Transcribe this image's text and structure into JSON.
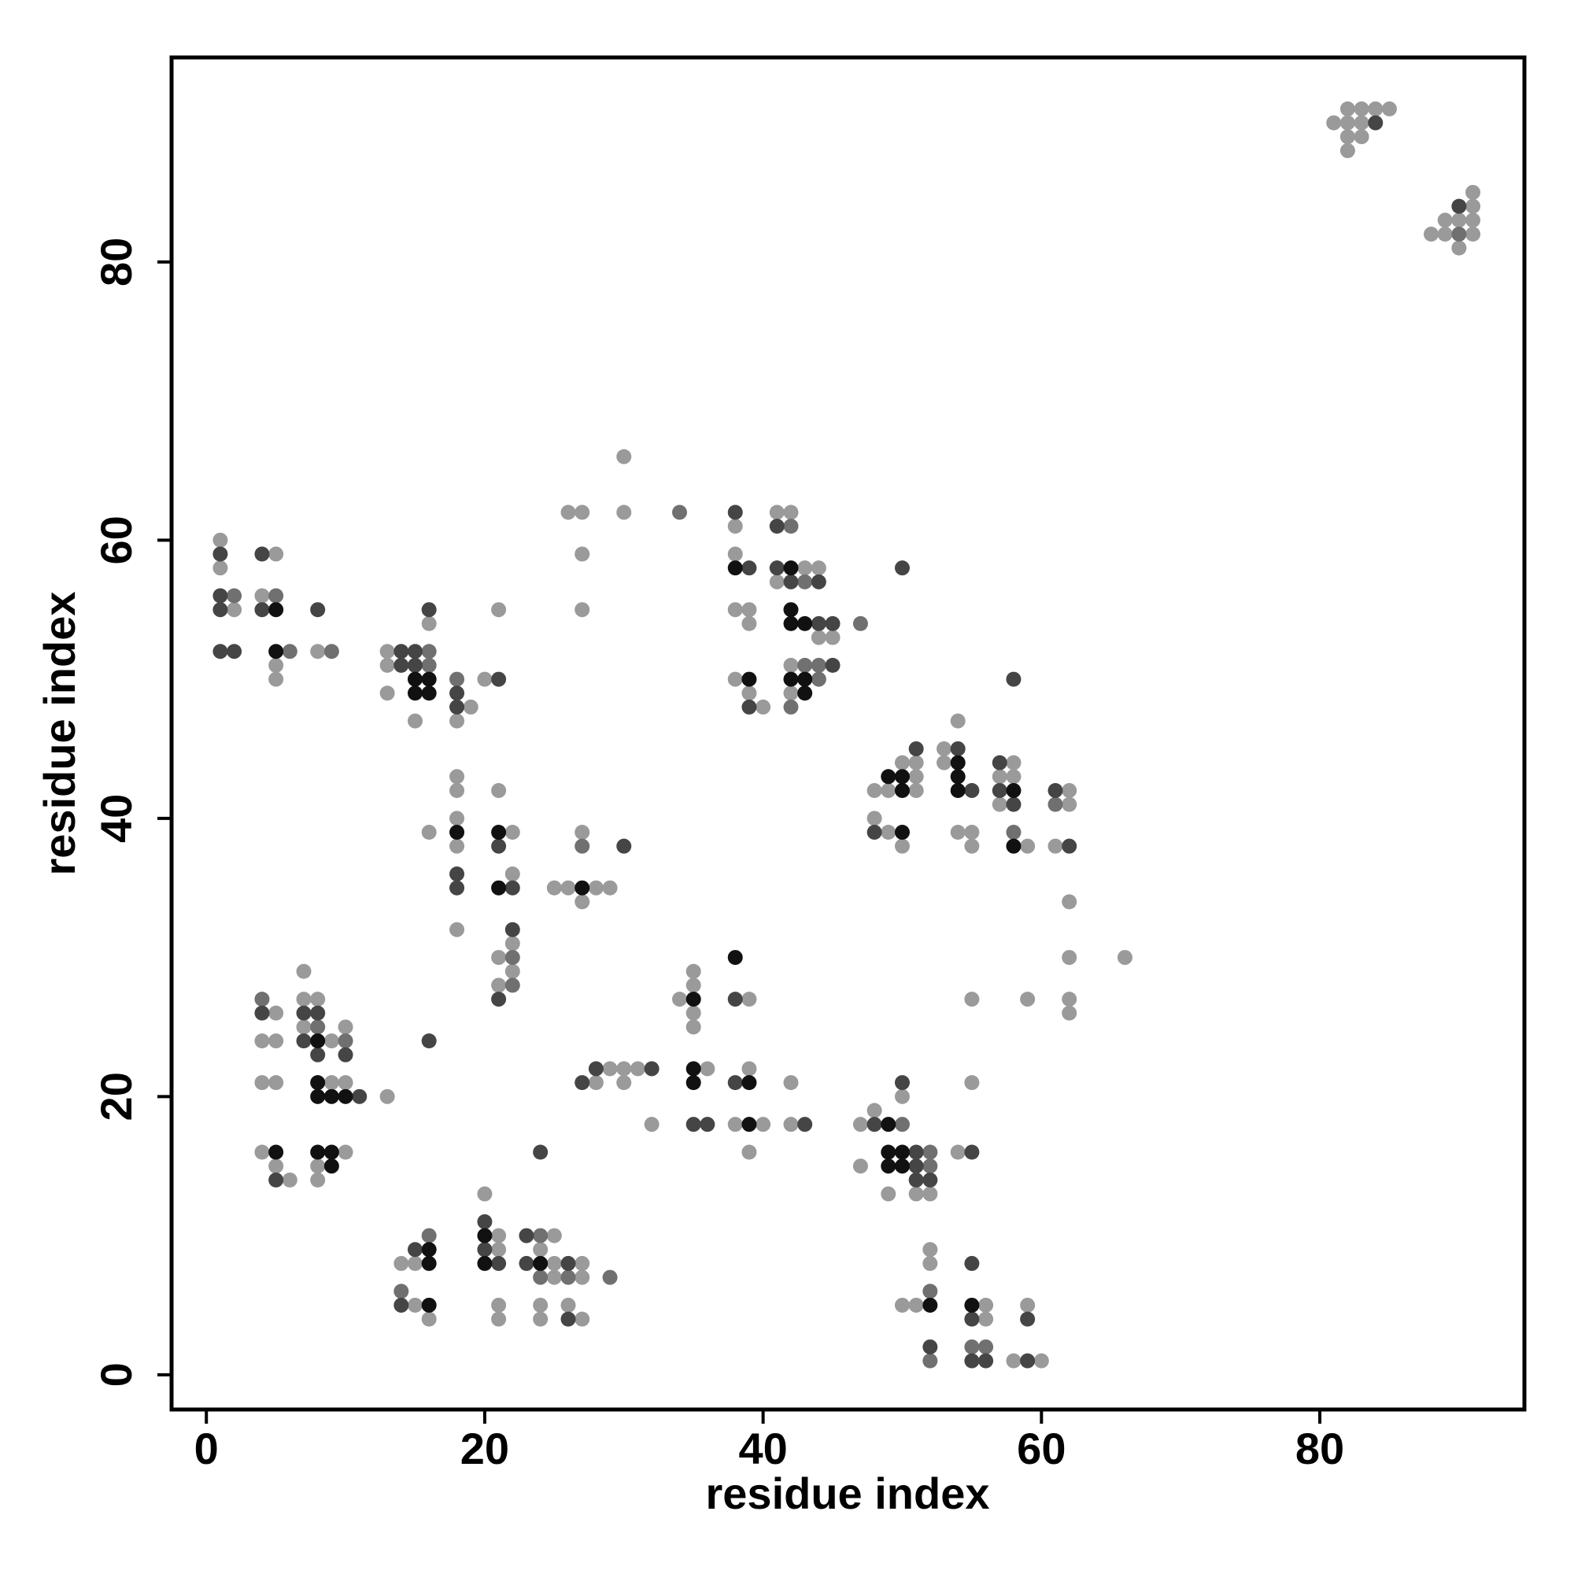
{
  "chart_data": {
    "type": "scatter",
    "xlabel": "residue index",
    "ylabel": "residue index",
    "xlim": [
      -2.5,
      94.7
    ],
    "ylim": [
      -2.5,
      94.7
    ],
    "xticks": [
      0,
      20,
      40,
      60,
      80
    ],
    "yticks": [
      0,
      20,
      40,
      60,
      80
    ],
    "grid": false,
    "series": [
      {
        "color": "#9a9a9a",
        "x": [
          82,
          83,
          84,
          85,
          81,
          82,
          83,
          82,
          83,
          82,
          91,
          91,
          89,
          90,
          91,
          88,
          89,
          91,
          90,
          1,
          1,
          5,
          4,
          2,
          8,
          5,
          5,
          13,
          13,
          13,
          15,
          16,
          19,
          18,
          20,
          18,
          18,
          18,
          16,
          18,
          18,
          21,
          22,
          22,
          22,
          21,
          22,
          21,
          27,
          25,
          26,
          28,
          29,
          27,
          21,
          26,
          27,
          27,
          27,
          30,
          30,
          38,
          41,
          42,
          38,
          43,
          44,
          41,
          38,
          39,
          39,
          44,
          45,
          42,
          38,
          39,
          42,
          40,
          54,
          53,
          50,
          51,
          53,
          58,
          51,
          57,
          58,
          48,
          49,
          51,
          62,
          57,
          62,
          48,
          49,
          54,
          55,
          50,
          55,
          59,
          61,
          62,
          62,
          66,
          62,
          62,
          55,
          59,
          7,
          7,
          8,
          5,
          7,
          10,
          4,
          5,
          9,
          4,
          5,
          9,
          10,
          13,
          4,
          10,
          5,
          8,
          6,
          8,
          35,
          34,
          35,
          35,
          35,
          39,
          29,
          30,
          31,
          28,
          30,
          36,
          39,
          42,
          32,
          38,
          40,
          42,
          39,
          48,
          47,
          50,
          54,
          47,
          49,
          51,
          52,
          55,
          14,
          15,
          15,
          16,
          20,
          21,
          21,
          21,
          21,
          25,
          24,
          25,
          27,
          25,
          27,
          24,
          24,
          26,
          27,
          52,
          52,
          50,
          51,
          56,
          56,
          59,
          58,
          60
        ],
        "y": [
          91,
          91,
          91,
          91,
          90,
          90,
          90,
          89,
          89,
          88,
          85,
          84,
          83,
          83,
          83,
          82,
          82,
          82,
          81,
          60,
          58,
          59,
          56,
          55,
          52,
          51,
          50,
          52,
          51,
          49,
          47,
          54,
          48,
          47,
          50,
          43,
          42,
          40,
          39,
          38,
          32,
          42,
          39,
          36,
          31,
          30,
          29,
          28,
          39,
          35,
          35,
          35,
          35,
          34,
          55,
          62,
          62,
          59,
          55,
          66,
          62,
          61,
          62,
          62,
          59,
          58,
          58,
          57,
          55,
          55,
          54,
          53,
          53,
          51,
          50,
          49,
          49,
          48,
          47,
          45,
          44,
          44,
          44,
          44,
          43,
          43,
          43,
          42,
          42,
          42,
          42,
          41,
          41,
          40,
          39,
          39,
          39,
          38,
          38,
          38,
          38,
          34,
          30,
          30,
          27,
          26,
          27,
          27,
          29,
          27,
          27,
          26,
          25,
          25,
          24,
          24,
          24,
          21,
          21,
          21,
          21,
          20,
          16,
          16,
          15,
          15,
          14,
          14,
          29,
          27,
          28,
          26,
          25,
          27,
          22,
          22,
          22,
          21,
          21,
          22,
          22,
          21,
          18,
          18,
          18,
          18,
          16,
          19,
          18,
          20,
          16,
          15,
          13,
          13,
          13,
          21,
          8,
          8,
          5,
          4,
          13,
          10,
          9,
          5,
          4,
          10,
          9,
          8,
          8,
          7,
          7,
          5,
          4,
          5,
          4,
          9,
          8,
          5,
          5,
          5,
          4,
          5,
          1,
          1
        ]
      },
      {
        "color": "#707070",
        "x": [
          90,
          2,
          5,
          6,
          9,
          16,
          16,
          18,
          27,
          22,
          22,
          34,
          42,
          43,
          47,
          43,
          44,
          44,
          42,
          61,
          58,
          4,
          8,
          10,
          50,
          52,
          52,
          16,
          14,
          24,
          24,
          26,
          29,
          52,
          55,
          56,
          52
        ],
        "y": [
          82,
          56,
          56,
          52,
          52,
          52,
          51,
          50,
          38,
          30,
          28,
          62,
          61,
          57,
          54,
          51,
          51,
          50,
          48,
          41,
          39,
          27,
          25,
          24,
          18,
          16,
          15,
          10,
          6,
          10,
          7,
          7,
          7,
          6,
          2,
          2,
          1
        ]
      },
      {
        "color": "#454545",
        "x": [
          84,
          90,
          1,
          4,
          1,
          1,
          4,
          8,
          1,
          2,
          14,
          15,
          14,
          15,
          16,
          18,
          18,
          21,
          18,
          18,
          21,
          22,
          22,
          21,
          30,
          38,
          41,
          39,
          41,
          42,
          44,
          44,
          45,
          45,
          39,
          50,
          51,
          54,
          57,
          55,
          57,
          61,
          58,
          48,
          62,
          58,
          4,
          7,
          8,
          7,
          8,
          10,
          11,
          16,
          5,
          38,
          28,
          32,
          27,
          38,
          35,
          36,
          43,
          48,
          50,
          51,
          55,
          51,
          51,
          52,
          15,
          14,
          20,
          20,
          21,
          23,
          23,
          26,
          24,
          26,
          55,
          55,
          59,
          52,
          55,
          56,
          59
        ],
        "y": [
          90,
          84,
          59,
          59,
          56,
          55,
          55,
          55,
          52,
          52,
          52,
          52,
          51,
          51,
          55,
          49,
          48,
          50,
          36,
          35,
          38,
          35,
          32,
          27,
          38,
          62,
          61,
          58,
          58,
          57,
          57,
          54,
          54,
          51,
          48,
          58,
          45,
          45,
          44,
          42,
          42,
          42,
          41,
          39,
          38,
          50,
          26,
          26,
          26,
          24,
          23,
          23,
          20,
          24,
          14,
          27,
          22,
          22,
          21,
          21,
          18,
          18,
          18,
          18,
          21,
          16,
          16,
          15,
          14,
          14,
          9,
          5,
          11,
          9,
          8,
          10,
          8,
          8,
          16,
          4,
          8,
          4,
          4,
          2,
          1,
          1,
          1
        ]
      },
      {
        "color": "#111111",
        "x": [
          5,
          5,
          15,
          16,
          15,
          16,
          18,
          21,
          21,
          27,
          38,
          42,
          42,
          42,
          43,
          39,
          42,
          43,
          43,
          54,
          49,
          50,
          54,
          50,
          54,
          58,
          50,
          58,
          8,
          8,
          8,
          9,
          10,
          5,
          8,
          9,
          9,
          35,
          38,
          35,
          35,
          39,
          39,
          49,
          49,
          50,
          49,
          50,
          16,
          16,
          16,
          20,
          20,
          24,
          52,
          55
        ],
        "y": [
          55,
          52,
          50,
          50,
          49,
          49,
          39,
          39,
          35,
          35,
          58,
          58,
          55,
          54,
          54,
          50,
          50,
          50,
          49,
          44,
          43,
          43,
          43,
          42,
          42,
          42,
          39,
          38,
          24,
          21,
          20,
          20,
          20,
          16,
          16,
          16,
          15,
          27,
          30,
          22,
          21,
          21,
          18,
          18,
          16,
          16,
          15,
          15,
          9,
          8,
          5,
          10,
          8,
          8,
          5,
          5
        ]
      }
    ]
  }
}
